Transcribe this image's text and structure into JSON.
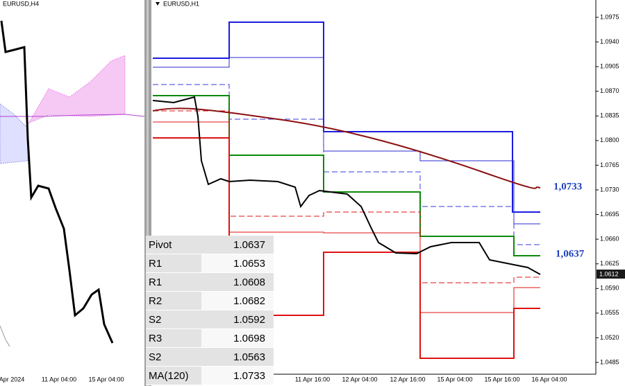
{
  "left_chart": {
    "title": "EURUSD,H4",
    "time_labels": [
      "Apr 2024",
      "11 Apr 04:00",
      "15 Apr 04:00"
    ]
  },
  "right_chart": {
    "title": "EURUSD,H1",
    "price_labels": [
      "1.0975",
      "1.0940",
      "1.0905",
      "1.0870",
      "1.0835",
      "1.0800",
      "1.0765",
      "1.0730",
      "1.0695",
      "1.0660",
      "1.0625",
      "1.0590",
      "1.0555",
      "1.0520",
      "1.0485"
    ],
    "current_price": "1.0612",
    "annotations": [
      "1,0733",
      "1,0637"
    ],
    "time_labels": [
      "11 Apr 16:00",
      "12 Apr 04:00",
      "12 Apr 16:00",
      "15 Apr 04:00",
      "15 Apr 16:00",
      "16 Apr 04:00"
    ]
  },
  "table": {
    "rows": [
      [
        "Pivot",
        "1.0637"
      ],
      [
        "R1",
        "1.0653"
      ],
      [
        "R1",
        "1.0608"
      ],
      [
        "R2",
        "1.0682"
      ],
      [
        "S2",
        "1.0592"
      ],
      [
        "R3",
        "1.0698"
      ],
      [
        "S2",
        "1.0563"
      ],
      [
        "MA(120)",
        "1.0733"
      ]
    ]
  }
}
